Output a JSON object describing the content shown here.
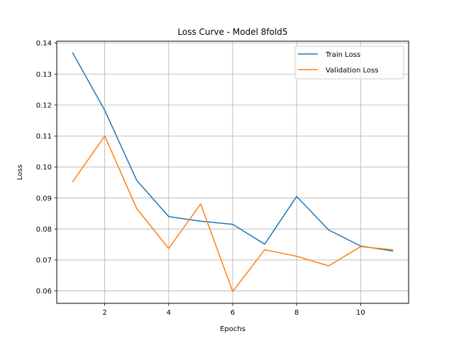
{
  "chart_data": {
    "type": "line",
    "title": "Loss Curve - Model 8fold5",
    "xlabel": "Epochs",
    "ylabel": "Loss",
    "x": [
      1,
      2,
      3,
      4,
      5,
      6,
      7,
      8,
      9,
      10,
      11
    ],
    "series": [
      {
        "name": "Train Loss",
        "color": "#1f77b4",
        "values": [
          0.1368,
          0.1183,
          0.0957,
          0.084,
          0.0825,
          0.0815,
          0.0751,
          0.0905,
          0.0797,
          0.0745,
          0.0729
        ]
      },
      {
        "name": "Validation Loss",
        "color": "#ff7f0e",
        "values": [
          0.0953,
          0.11,
          0.0866,
          0.0737,
          0.0881,
          0.0598,
          0.0733,
          0.0712,
          0.0681,
          0.0743,
          0.0733
        ]
      }
    ],
    "xlim": [
      0.5,
      11.5
    ],
    "ylim": [
      0.056,
      0.1406
    ],
    "xticks": [
      2,
      4,
      6,
      8,
      10
    ],
    "yticks": [
      0.06,
      0.07,
      0.08,
      0.09,
      0.1,
      0.11,
      0.12,
      0.13,
      0.14
    ],
    "xtick_labels": [
      "2",
      "4",
      "6",
      "8",
      "10"
    ],
    "ytick_labels": [
      "0.06",
      "0.07",
      "0.08",
      "0.09",
      "0.10",
      "0.11",
      "0.12",
      "0.13",
      "0.14"
    ],
    "grid": true,
    "legend_position": "top-right"
  }
}
